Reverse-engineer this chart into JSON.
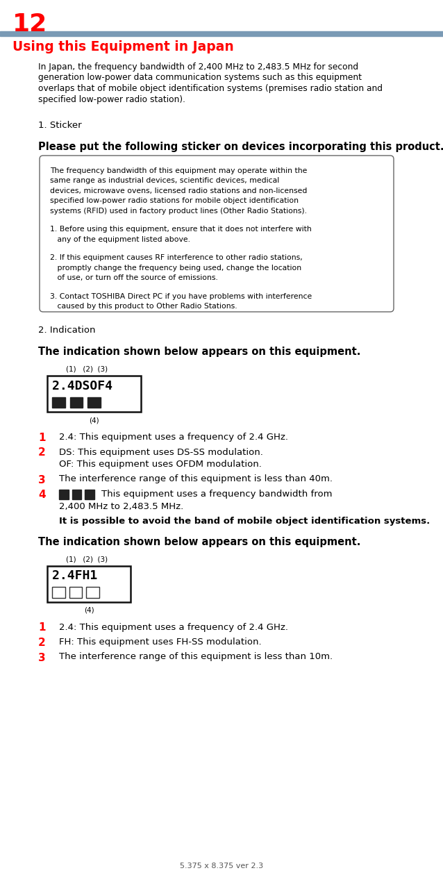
{
  "page_num": "12",
  "section_title": "Using this Equipment in Japan",
  "intro_text": "In Japan, the frequency bandwidth of 2,400 MHz to 2,483.5 MHz for second generation low-power data communication systems such as this equipment overlaps that of mobile object identification systems (premises radio station and specified low-power radio station).",
  "sticker_heading": "1. Sticker",
  "sticker_subheading": "Please put the following sticker on devices incorporating this product.",
  "sticker_box_para": "The frequency bandwidth of this equipment may operate within the same range as industrial devices, scientific devices, medical devices, microwave ovens, licensed radio stations and non-licensed specified low-power radio stations for mobile object identification systems (RFID) used in factory product lines (Other Radio Stations).",
  "sticker_item1": "1. Before using this equipment, ensure that it does not interfere with any of the equipment listed above.",
  "sticker_item2": "2. If this equipment causes RF interference to other radio stations, promptly change the frequency being used, change the location of use, or turn off the source of emissions.",
  "sticker_item3": "3. Contact TOSHIBA Direct PC if you have problems with interference caused by this product to Other Radio Stations.",
  "indication_heading": "2. Indication",
  "indication_text": "The indication shown below appears on this equipment.",
  "diag1_coords": "(1)   (2)  (3)",
  "diag1_text": "2.4DSOF4",
  "diag1_bottom": "(4)",
  "item1_num": "1",
  "item1_text": "2.4: This equipment uses a frequency of 2.4 GHz.",
  "item2_num": "2",
  "item2_text": "DS: This equipment uses DS-SS modulation.",
  "item2b_text": "OF: This equipment uses OFDM modulation.",
  "item3_num": "3",
  "item3_text": "The interference range of this equipment is less than 40m.",
  "item4_num": "4",
  "item4_text": "This equipment uses a frequency bandwidth from",
  "item4_text2": "2,400 MHz to 2,483.5 MHz.",
  "possible_text": "It is possible to avoid the band of mobile object identification systems.",
  "indication_text2": "The indication shown below appears on this equipment.",
  "diag2_coords": "(1)   (2)  (3)",
  "diag2_text": "2.4FH1",
  "diag2_bottom": "(4)",
  "i1_num": "1",
  "i1_text": "2.4: This equipment uses a frequency of 2.4 GHz.",
  "i2_num": "2",
  "i2_text": "FH: This equipment uses FH-SS modulation.",
  "i3_num": "3",
  "i3_text": "The interference range of this equipment is less than 10m.",
  "footer_text": "5.375 x 8.375 ver 2.3",
  "bg_color": "#ffffff",
  "text_color": "#000000",
  "red_color": "#ff0000",
  "header_bar_color": "#7a9ab5",
  "box_edge_color": "#666666"
}
